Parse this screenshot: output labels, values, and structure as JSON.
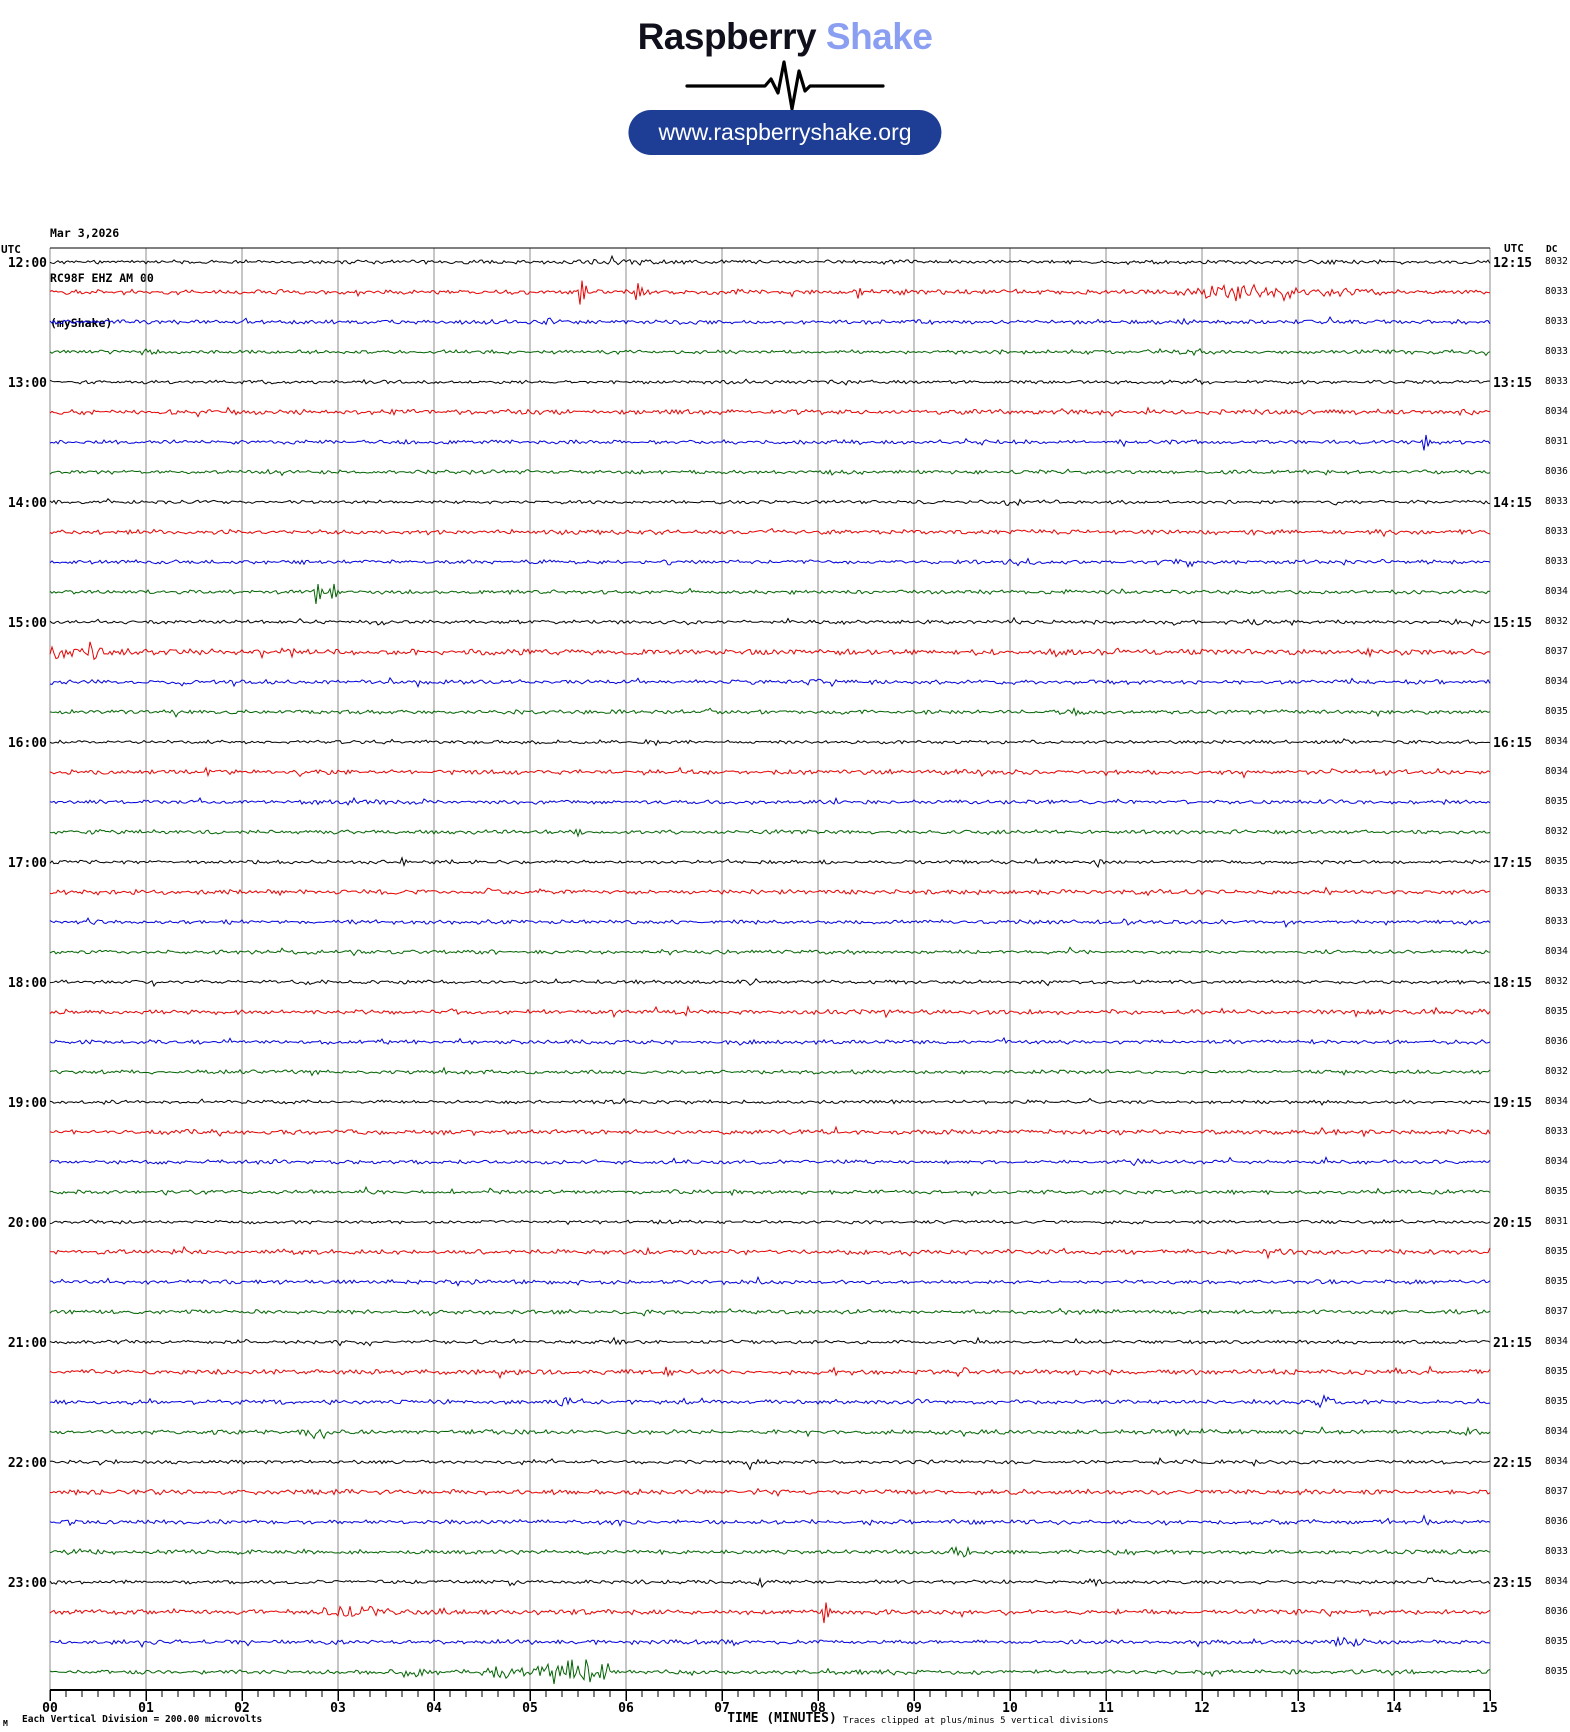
{
  "header": {
    "logo_primary": "Raspberry",
    "logo_secondary": "Shake",
    "website": "www.raspberryshake.org"
  },
  "meta": {
    "date": "Mar 3,2026",
    "station": "RC98F EHZ AM 00",
    "network": "(myShake)"
  },
  "axes": {
    "left_header": "UTC",
    "right_header": "UTC",
    "dc_header": "DC",
    "xlabel": "TIME (MINUTES)",
    "x_labels": [
      "00",
      "01",
      "02",
      "03",
      "04",
      "05",
      "06",
      "07",
      "08",
      "09",
      "10",
      "11",
      "12",
      "13",
      "14",
      "15"
    ],
    "footnote_marker": "M",
    "footer_left": "Each Vertical Division =  200.00 microvolts",
    "footer_right": "Traces clipped at plus/minus 5 vertical divisions"
  },
  "chart_data": {
    "type": "line",
    "kind": "helicorder",
    "title": "RC98F EHZ AM 00 helicorder, Mar 3,2026 12:00-24:00 UTC",
    "x_range_minutes": [
      0,
      15
    ],
    "minutes_per_row": 15,
    "grid": "vertical-minute-lines",
    "row_color_cycle": [
      "#000000",
      "#e80000",
      "#0000e0",
      "#006400"
    ],
    "legend": "none",
    "rows": [
      {
        "h": "12:00",
        "h15": "12:15",
        "dc": 8032,
        "color": "#000000",
        "amp": 1.3,
        "events": [
          [
            "b",
            5.4,
            6.3,
            2.2
          ]
        ]
      },
      {
        "h": "",
        "h15": "",
        "dc": 8033,
        "color": "#e80000",
        "amp": 1.7,
        "events": [
          [
            "s",
            5.5,
            13
          ],
          [
            "s",
            6.08,
            9
          ],
          [
            "s",
            8.4,
            5
          ],
          [
            "b",
            11.7,
            13.2,
            5
          ],
          [
            "b",
            13.2,
            13.9,
            2
          ]
        ]
      },
      {
        "h": "",
        "h15": "",
        "dc": 8033,
        "color": "#0000e0",
        "amp": 1.5,
        "events": [
          [
            "b",
            5.1,
            5.4,
            2
          ],
          [
            "b",
            11.7,
            11.9,
            2
          ]
        ]
      },
      {
        "h": "",
        "h15": "",
        "dc": 8033,
        "color": "#006400",
        "amp": 1.4,
        "events": [
          [
            "b",
            0.8,
            1.1,
            2.4
          ]
        ]
      },
      {
        "h": "13:00",
        "h15": "13:15",
        "dc": 8033,
        "color": "#000000",
        "amp": 1.2,
        "events": [
          [
            "b",
            8.0,
            8.3,
            2
          ]
        ]
      },
      {
        "h": "",
        "h15": "",
        "dc": 8034,
        "color": "#e80000",
        "amp": 1.7,
        "events": []
      },
      {
        "h": "",
        "h15": "",
        "dc": 8031,
        "color": "#0000e0",
        "amp": 1.4,
        "events": [
          [
            "s",
            14.3,
            8
          ]
        ]
      },
      {
        "h": "",
        "h15": "",
        "dc": 8036,
        "color": "#006400",
        "amp": 1.4,
        "events": []
      },
      {
        "h": "14:00",
        "h15": "14:15",
        "dc": 8033,
        "color": "#000000",
        "amp": 1.2,
        "events": [
          [
            "b",
            9.9,
            10.2,
            2.2
          ],
          [
            "b",
            13.3,
            13.5,
            1.8
          ]
        ]
      },
      {
        "h": "",
        "h15": "",
        "dc": 8033,
        "color": "#e80000",
        "amp": 1.6,
        "events": []
      },
      {
        "h": "",
        "h15": "",
        "dc": 8033,
        "color": "#0000e0",
        "amp": 1.4,
        "events": [
          [
            "b",
            9.9,
            10.3,
            2.4
          ],
          [
            "b",
            11.5,
            12.1,
            2.2
          ]
        ]
      },
      {
        "h": "",
        "h15": "",
        "dc": 8034,
        "color": "#006400",
        "amp": 1.4,
        "events": [
          [
            "s",
            2.75,
            11
          ],
          [
            "s",
            2.92,
            8
          ]
        ]
      },
      {
        "h": "15:00",
        "h15": "15:15",
        "dc": 8032,
        "color": "#000000",
        "amp": 1.3,
        "events": [
          [
            "b",
            3.4,
            3.6,
            2
          ],
          [
            "b",
            9.9,
            10.1,
            2.4
          ],
          [
            "b",
            12.4,
            12.7,
            2.4
          ],
          [
            "b",
            14.6,
            15,
            2
          ]
        ]
      },
      {
        "h": "",
        "h15": "",
        "dc": 8037,
        "color": "#e80000",
        "amp": 1.9,
        "events": [
          [
            "b",
            -0.2,
            0.9,
            4.5
          ],
          [
            "b",
            2.4,
            2.6,
            3
          ],
          [
            "b",
            10.3,
            10.5,
            3
          ],
          [
            "s",
            13.7,
            5
          ]
        ]
      },
      {
        "h": "",
        "h15": "",
        "dc": 8034,
        "color": "#0000e0",
        "amp": 1.5,
        "events": [
          [
            "b",
            7.8,
            8.3,
            2.8
          ]
        ]
      },
      {
        "h": "",
        "h15": "",
        "dc": 8035,
        "color": "#006400",
        "amp": 1.4,
        "events": [
          [
            "b",
            10.5,
            10.8,
            2.4
          ]
        ]
      },
      {
        "h": "16:00",
        "h15": "16:15",
        "dc": 8034,
        "color": "#000000",
        "amp": 1.2,
        "events": []
      },
      {
        "h": "",
        "h15": "",
        "dc": 8034,
        "color": "#e80000",
        "amp": 1.6,
        "events": [
          [
            "s",
            1.6,
            5
          ]
        ]
      },
      {
        "h": "",
        "h15": "",
        "dc": 8035,
        "color": "#0000e0",
        "amp": 1.4,
        "events": [
          [
            "b",
            2.6,
            2.9,
            2
          ]
        ]
      },
      {
        "h": "",
        "h15": "",
        "dc": 8032,
        "color": "#006400",
        "amp": 1.4,
        "events": [
          [
            "s",
            5.45,
            4
          ]
        ]
      },
      {
        "h": "17:00",
        "h15": "17:15",
        "dc": 8035,
        "color": "#000000",
        "amp": 1.2,
        "events": [
          [
            "s",
            3.65,
            3
          ],
          [
            "s",
            4.15,
            3
          ],
          [
            "b",
            10.8,
            11.0,
            2
          ]
        ]
      },
      {
        "h": "",
        "h15": "",
        "dc": 8033,
        "color": "#e80000",
        "amp": 1.6,
        "events": [
          [
            "b",
            4.5,
            4.7,
            2.2
          ],
          [
            "b",
            11.3,
            11.5,
            2
          ]
        ]
      },
      {
        "h": "",
        "h15": "",
        "dc": 8033,
        "color": "#0000e0",
        "amp": 1.4,
        "events": [
          [
            "b",
            0.35,
            0.55,
            2.4
          ],
          [
            "b",
            11.1,
            11.3,
            2.4
          ]
        ]
      },
      {
        "h": "",
        "h15": "",
        "dc": 8034,
        "color": "#006400",
        "amp": 1.4,
        "events": [
          [
            "b",
            6.3,
            6.5,
            2
          ]
        ]
      },
      {
        "h": "18:00",
        "h15": "18:15",
        "dc": 8032,
        "color": "#000000",
        "amp": 1.2,
        "events": [
          [
            "b",
            2.6,
            2.9,
            2.4
          ]
        ]
      },
      {
        "h": "",
        "h15": "",
        "dc": 8035,
        "color": "#e80000",
        "amp": 1.6,
        "events": [
          [
            "s",
            6.6,
            4
          ]
        ]
      },
      {
        "h": "",
        "h15": "",
        "dc": 8036,
        "color": "#0000e0",
        "amp": 1.4,
        "events": [
          [
            "b",
            3.4,
            3.6,
            2.4
          ]
        ]
      },
      {
        "h": "",
        "h15": "",
        "dc": 8032,
        "color": "#006400",
        "amp": 1.4,
        "events": []
      },
      {
        "h": "19:00",
        "h15": "19:15",
        "dc": 8034,
        "color": "#000000",
        "amp": 1.2,
        "events": []
      },
      {
        "h": "",
        "h15": "",
        "dc": 8033,
        "color": "#e80000",
        "amp": 1.6,
        "events": []
      },
      {
        "h": "",
        "h15": "",
        "dc": 8034,
        "color": "#0000e0",
        "amp": 1.4,
        "events": [
          [
            "b",
            11.1,
            11.4,
            2.8
          ]
        ]
      },
      {
        "h": "",
        "h15": "",
        "dc": 8035,
        "color": "#006400",
        "amp": 1.4,
        "events": []
      },
      {
        "h": "20:00",
        "h15": "20:15",
        "dc": 8031,
        "color": "#000000",
        "amp": 1.2,
        "events": []
      },
      {
        "h": "",
        "h15": "",
        "dc": 8035,
        "color": "#e80000",
        "amp": 1.7,
        "events": [
          [
            "b",
            12.6,
            12.9,
            2.4
          ]
        ]
      },
      {
        "h": "",
        "h15": "",
        "dc": 8035,
        "color": "#0000e0",
        "amp": 1.4,
        "events": []
      },
      {
        "h": "",
        "h15": "",
        "dc": 8037,
        "color": "#006400",
        "amp": 1.5,
        "events": []
      },
      {
        "h": "21:00",
        "h15": "21:15",
        "dc": 8034,
        "color": "#000000",
        "amp": 1.2,
        "events": [
          [
            "s",
            5.85,
            3
          ]
        ]
      },
      {
        "h": "",
        "h15": "",
        "dc": 8035,
        "color": "#e80000",
        "amp": 1.7,
        "events": [
          [
            "s",
            6.4,
            6
          ],
          [
            "s",
            8.15,
            4
          ],
          [
            "b",
            9.4,
            9.6,
            3
          ],
          [
            "b",
            10.5,
            10.7,
            3
          ],
          [
            "s",
            14.0,
            4
          ]
        ]
      },
      {
        "h": "",
        "h15": "",
        "dc": 8035,
        "color": "#0000e0",
        "amp": 1.5,
        "events": [
          [
            "b",
            5.2,
            5.5,
            3.2
          ],
          [
            "b",
            13.1,
            13.5,
            2.8
          ]
        ]
      },
      {
        "h": "",
        "h15": "",
        "dc": 8034,
        "color": "#006400",
        "amp": 1.5,
        "events": [
          [
            "b",
            2.65,
            2.95,
            5.5
          ],
          [
            "b",
            11.5,
            12.0,
            2.4
          ],
          [
            "b",
            14.6,
            15,
            2.8
          ]
        ]
      },
      {
        "h": "22:00",
        "h15": "22:15",
        "dc": 8034,
        "color": "#000000",
        "amp": 1.3,
        "events": [
          [
            "b",
            7.2,
            7.4,
            2.8
          ],
          [
            "b",
            12.5,
            12.7,
            2
          ]
        ]
      },
      {
        "h": "",
        "h15": "",
        "dc": 8037,
        "color": "#e80000",
        "amp": 1.7,
        "events": [
          [
            "b",
            2.7,
            2.9,
            2.4
          ],
          [
            "b",
            5.6,
            5.8,
            2.4
          ],
          [
            "b",
            11.5,
            11.7,
            2.4
          ]
        ]
      },
      {
        "h": "",
        "h15": "",
        "dc": 8036,
        "color": "#0000e0",
        "amp": 1.5,
        "events": [
          [
            "b",
            0.1,
            0.3,
            2.4
          ],
          [
            "b",
            5.7,
            6.0,
            2.8
          ],
          [
            "b",
            12.7,
            12.9,
            2.4
          ],
          [
            "b",
            14.2,
            14.5,
            2.4
          ]
        ]
      },
      {
        "h": "",
        "h15": "",
        "dc": 8033,
        "color": "#006400",
        "amp": 1.5,
        "events": [
          [
            "b",
            9.3,
            9.6,
            2.8
          ],
          [
            "b",
            11.0,
            11.3,
            2.8
          ]
        ]
      },
      {
        "h": "23:00",
        "h15": "23:15",
        "dc": 8034,
        "color": "#000000",
        "amp": 1.3,
        "events": [
          [
            "b",
            4.7,
            4.9,
            2.4
          ],
          [
            "b",
            7.3,
            7.5,
            2
          ],
          [
            "b",
            10.8,
            11.1,
            2.4
          ],
          [
            "b",
            14.3,
            14.5,
            2
          ]
        ]
      },
      {
        "h": "",
        "h15": "",
        "dc": 8036,
        "color": "#e80000",
        "amp": 1.7,
        "events": [
          [
            "b",
            2.7,
            3.6,
            3.5
          ],
          [
            "s",
            4.05,
            3
          ],
          [
            "s",
            8.05,
            11
          ]
        ]
      },
      {
        "h": "",
        "h15": "",
        "dc": 8035,
        "color": "#0000e0",
        "amp": 1.5,
        "events": [
          [
            "b",
            7.0,
            7.2,
            2.4
          ],
          [
            "b",
            13.3,
            13.9,
            2.8
          ]
        ]
      },
      {
        "h": "",
        "h15": "",
        "dc": 8035,
        "color": "#006400",
        "amp": 1.5,
        "events": [
          [
            "b",
            3.5,
            4.1,
            2.8
          ],
          [
            "b",
            4.4,
            5.0,
            3.5
          ],
          [
            "b",
            5.0,
            5.9,
            7
          ],
          [
            "b",
            8.3,
            8.5,
            2.4
          ]
        ]
      }
    ]
  }
}
